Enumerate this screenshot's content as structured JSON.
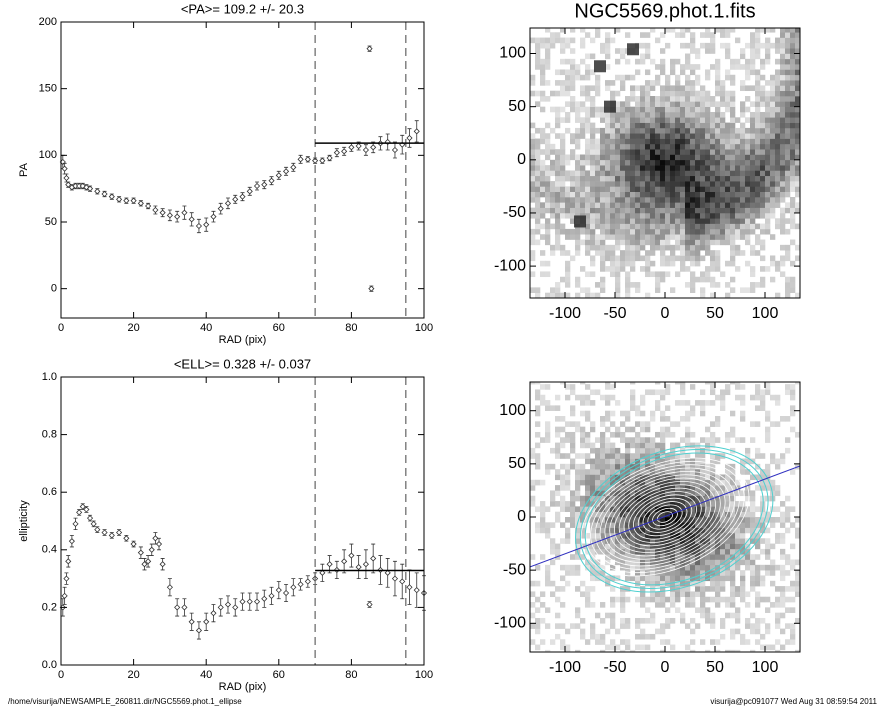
{
  "chart_data": [
    {
      "type": "errorbar",
      "title": "<PA>= 109.2 +/-  20.3",
      "xlabel": "RAD (pix)",
      "ylabel": "PA",
      "x": [
        0.5,
        1,
        1.5,
        2,
        3,
        4,
        5,
        6,
        7,
        8,
        10,
        12,
        14,
        16,
        18,
        20,
        22,
        24,
        26,
        28,
        30,
        32,
        34,
        36,
        38,
        40,
        42,
        44,
        46,
        48,
        50,
        52,
        54,
        56,
        58,
        60,
        62,
        64,
        66,
        68,
        70,
        72,
        74,
        76,
        78,
        80,
        82,
        84,
        85,
        85.5,
        86,
        88,
        90,
        92,
        94,
        96,
        98
      ],
      "values": [
        95,
        90,
        83,
        78,
        76,
        77,
        77,
        77,
        76,
        75,
        73,
        71,
        69,
        67,
        66,
        66,
        64,
        62,
        59,
        57,
        55,
        54,
        57,
        52,
        47,
        48,
        54,
        60,
        64,
        67,
        69,
        73,
        77,
        78,
        81,
        85,
        88,
        91,
        97,
        97,
        96,
        96,
        98,
        102,
        103,
        106,
        107,
        104,
        180,
        0,
        106,
        109,
        110,
        104,
        108,
        113,
        118
      ],
      "errors": [
        5,
        4,
        3,
        2,
        2,
        2,
        2,
        2,
        2,
        2,
        2,
        2,
        2,
        2,
        2,
        2,
        2,
        2,
        3,
        3,
        4,
        4,
        5,
        5,
        5,
        5,
        4,
        4,
        4,
        3,
        3,
        3,
        3,
        3,
        3,
        3,
        3,
        3,
        3,
        2,
        2,
        2,
        2,
        3,
        3,
        3,
        3,
        4,
        2,
        2,
        4,
        5,
        6,
        6,
        7,
        7,
        8
      ],
      "mean": 109.2,
      "mean_range": [
        70,
        100
      ],
      "vlines": [
        70,
        95
      ],
      "xlim": [
        0,
        100
      ],
      "ylim": [
        -22,
        200
      ],
      "xticks": [
        0,
        20,
        40,
        60,
        80,
        100
      ],
      "yticks": [
        0,
        50,
        100,
        150,
        200
      ]
    },
    {
      "type": "image",
      "title": "NGC5569.phot.1.fits",
      "view": "raw",
      "xlim": [
        -135,
        135
      ],
      "ylim": [
        -130,
        124
      ],
      "xticks": [
        -100,
        -50,
        0,
        50,
        100
      ],
      "yticks": [
        -100,
        -50,
        0,
        50,
        100
      ]
    },
    {
      "type": "errorbar",
      "title": "<ELL>= 0.328 +/-  0.037",
      "xlabel": "RAD (pix)",
      "ylabel": "ellipticity",
      "x": [
        0.5,
        1,
        1.5,
        2,
        3,
        4,
        5,
        6,
        7,
        8,
        9,
        10,
        12,
        14,
        16,
        18,
        20,
        22,
        23,
        24,
        25,
        26,
        27,
        28,
        30,
        32,
        34,
        36,
        38,
        40,
        42,
        44,
        46,
        48,
        50,
        52,
        54,
        56,
        58,
        60,
        62,
        64,
        66,
        68,
        70,
        72,
        74,
        76,
        78,
        80,
        82,
        84,
        85,
        86,
        88,
        90,
        92,
        94,
        96,
        98,
        100
      ],
      "values": [
        0.2,
        0.24,
        0.3,
        0.36,
        0.43,
        0.49,
        0.53,
        0.55,
        0.54,
        0.51,
        0.49,
        0.47,
        0.46,
        0.45,
        0.46,
        0.44,
        0.42,
        0.39,
        0.35,
        0.36,
        0.4,
        0.44,
        0.42,
        0.35,
        0.27,
        0.2,
        0.2,
        0.15,
        0.12,
        0.15,
        0.18,
        0.2,
        0.21,
        0.2,
        0.22,
        0.22,
        0.22,
        0.23,
        0.24,
        0.26,
        0.25,
        0.27,
        0.28,
        0.29,
        0.3,
        0.32,
        0.35,
        0.33,
        0.36,
        0.38,
        0.34,
        0.35,
        0.21,
        0.37,
        0.33,
        0.32,
        0.3,
        0.29,
        0.27,
        0.26,
        0.25
      ],
      "errors": [
        0.03,
        0.03,
        0.02,
        0.02,
        0.02,
        0.02,
        0.01,
        0.01,
        0.01,
        0.01,
        0.01,
        0.01,
        0.01,
        0.01,
        0.01,
        0.01,
        0.01,
        0.02,
        0.02,
        0.02,
        0.02,
        0.02,
        0.02,
        0.02,
        0.03,
        0.03,
        0.03,
        0.03,
        0.03,
        0.03,
        0.03,
        0.03,
        0.03,
        0.03,
        0.03,
        0.03,
        0.03,
        0.03,
        0.03,
        0.03,
        0.03,
        0.03,
        0.02,
        0.02,
        0.02,
        0.03,
        0.03,
        0.03,
        0.04,
        0.04,
        0.04,
        0.05,
        0.01,
        0.05,
        0.05,
        0.05,
        0.06,
        0.06,
        0.06,
        0.06,
        0.06
      ],
      "mean": 0.328,
      "mean_range": [
        70,
        100
      ],
      "vlines": [
        70,
        95
      ],
      "xlim": [
        0,
        100
      ],
      "ylim": [
        0,
        1
      ],
      "xticks": [
        0,
        20,
        40,
        60,
        80,
        100
      ],
      "yticks": [
        {
          "value": 0,
          "label": "0.0"
        },
        {
          "value": 0.2,
          "label": "0.2"
        },
        {
          "value": 0.4,
          "label": "0.4"
        },
        {
          "value": 0.6,
          "label": "0.6"
        },
        {
          "value": 0.8,
          "label": "0.8"
        },
        {
          "value": 1,
          "label": "1.0"
        }
      ]
    },
    {
      "type": "image",
      "view": "model",
      "xlim": [
        -135,
        135
      ],
      "ylim": [
        -127,
        127
      ],
      "xticks": [
        -100,
        -50,
        0,
        50,
        100
      ],
      "yticks": [
        -100,
        -50,
        0,
        50,
        100
      ]
    }
  ],
  "footer": {
    "left": "/home/visurija/NEWSAMPLE_260811.dir/NGC5569.phot.1_ellipse",
    "right": "visurija@pc091077  Wed Aug 31 08:59:54 2011"
  }
}
